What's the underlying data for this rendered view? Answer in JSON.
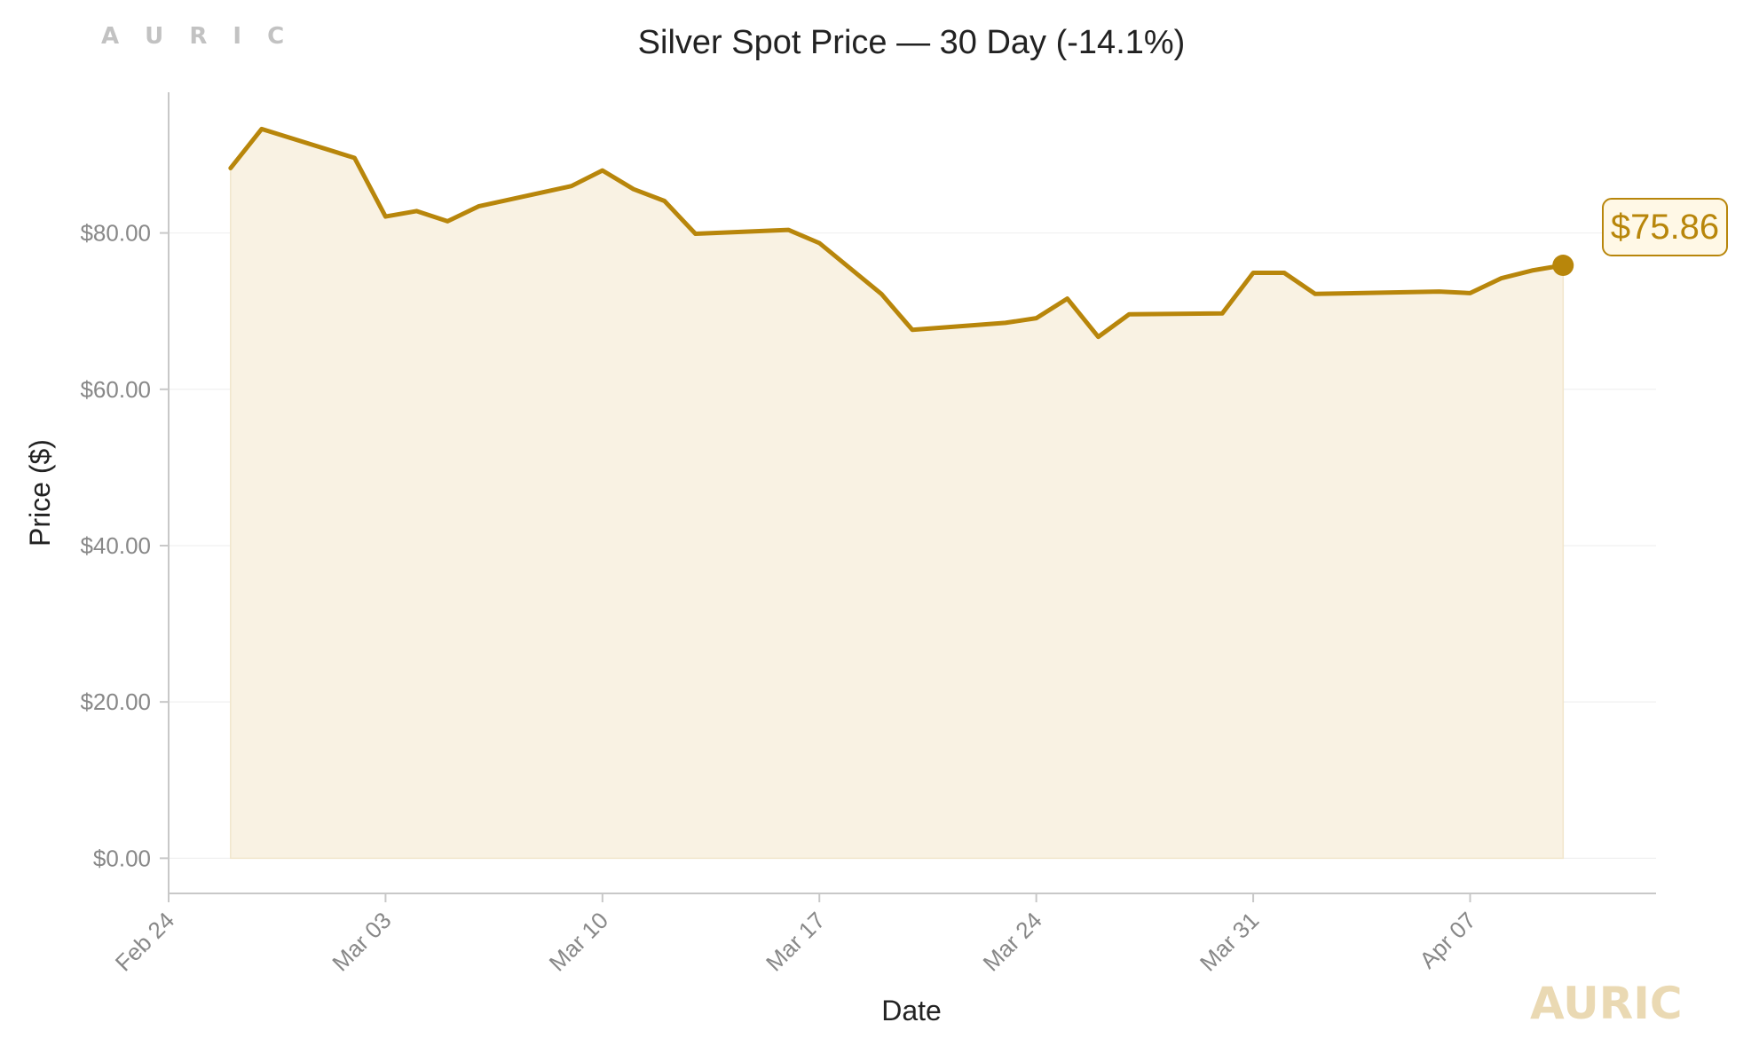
{
  "brand": {
    "top_text": "A U R I C",
    "watermark": "AURIC"
  },
  "colors": {
    "line": "#b8860b",
    "fill": "#f9f2e3",
    "grid": "#f0f0f0",
    "axis": "#c8c8c8",
    "tick_text": "#888888",
    "label_box_fill": "#fff8e6"
  },
  "chart_data": {
    "type": "area",
    "title": "Silver Spot Price — 30 Day (-14.1%)",
    "xlabel": "Date",
    "ylabel": "Price ($)",
    "ylim": [
      -4.5,
      98
    ],
    "xlim": [
      "2025-02-24",
      "2025-04-13"
    ],
    "yticks": [
      0,
      20,
      40,
      60,
      80
    ],
    "ytick_labels": [
      "$0.00",
      "$20.00",
      "$40.00",
      "$60.00",
      "$80.00"
    ],
    "xticks": [
      "2025-02-24",
      "2025-03-03",
      "2025-03-10",
      "2025-03-17",
      "2025-03-24",
      "2025-03-31",
      "2025-04-07"
    ],
    "xtick_labels": [
      "Feb 24",
      "Mar 03",
      "Mar 10",
      "Mar 17",
      "Mar 24",
      "Mar 31",
      "Apr 07"
    ],
    "grid": "horizontal",
    "last_label": "$75.86",
    "series": [
      {
        "x": [
          "2025-02-26",
          "2025-02-27",
          "2025-03-02",
          "2025-03-03",
          "2025-03-04",
          "2025-03-05",
          "2025-03-06",
          "2025-03-09",
          "2025-03-10",
          "2025-03-11",
          "2025-03-12",
          "2025-03-13",
          "2025-03-16",
          "2025-03-17",
          "2025-03-19",
          "2025-03-20",
          "2025-03-23",
          "2025-03-24",
          "2025-03-25",
          "2025-03-26",
          "2025-03-27",
          "2025-03-30",
          "2025-03-31",
          "2025-04-01",
          "2025-04-02",
          "2025-04-06",
          "2025-04-07",
          "2025-04-08",
          "2025-04-09",
          "2025-04-10"
        ],
        "y": [
          88.3,
          93.3,
          89.6,
          82.1,
          82.8,
          81.5,
          83.4,
          86.0,
          88.0,
          85.6,
          84.1,
          79.9,
          80.4,
          78.7,
          72.2,
          67.6,
          68.5,
          69.1,
          71.6,
          66.7,
          69.6,
          69.7,
          74.9,
          74.9,
          72.2,
          72.5,
          72.3,
          74.2,
          75.2,
          75.86
        ]
      }
    ]
  }
}
